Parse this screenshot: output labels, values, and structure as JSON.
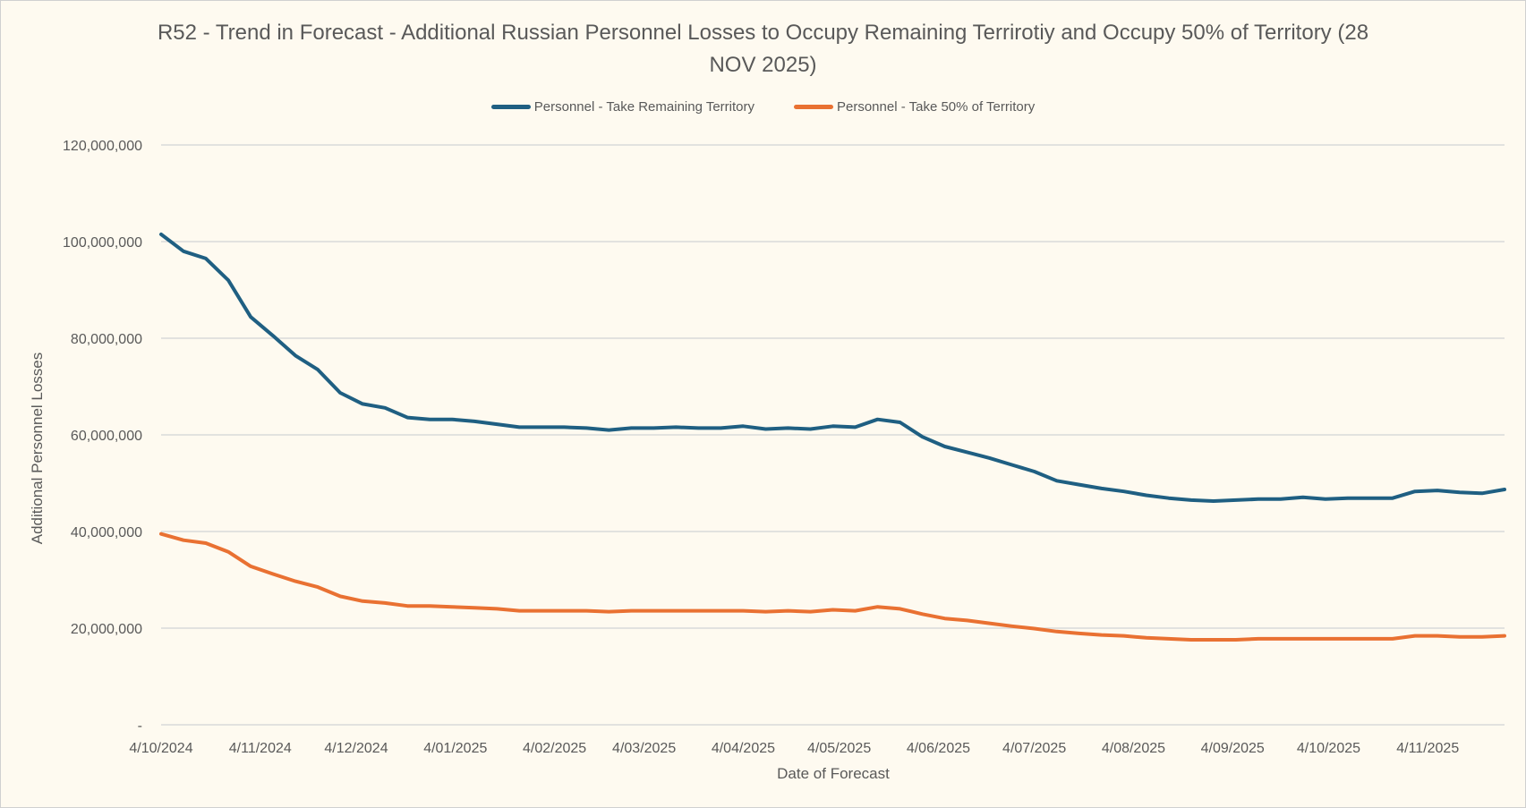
{
  "chart_data": {
    "type": "line",
    "title": "R52 - Trend in Forecast - Additional Russian Personnel Losses to Occupy Remaining Terrirotiy and Occupy 50% of Territory  (28 NOV 2025)",
    "xlabel": "Date of Forecast",
    "ylabel": "Additional Personnel Losses",
    "ylim": [
      0,
      120000000
    ],
    "y_ticks": [
      0,
      20000000,
      40000000,
      60000000,
      80000000,
      100000000,
      120000000
    ],
    "y_tick_labels": [
      "-",
      "20,000,000",
      "40,000,000",
      "60,000,000",
      "80,000,000",
      "100,000,000",
      "120,000,000"
    ],
    "x_ticks": [
      "2024-10-04",
      "2024-11-04",
      "2024-12-04",
      "2025-01-04",
      "2025-02-04",
      "2025-03-04",
      "2025-04-04",
      "2025-05-04",
      "2025-06-04",
      "2025-07-04",
      "2025-08-04",
      "2025-09-04",
      "2025-10-04",
      "2025-11-04"
    ],
    "x_tick_labels": [
      "4/10/2024",
      "4/11/2024",
      "4/12/2024",
      "4/01/2025",
      "4/02/2025",
      "4/03/2025",
      "4/04/2025",
      "4/05/2025",
      "4/06/2025",
      "4/07/2025",
      "4/08/2025",
      "4/09/2025",
      "4/10/2025",
      "4/11/2025"
    ],
    "xlim": [
      "2024-10-04",
      "2025-11-28"
    ],
    "grid": true,
    "legend_position": "top",
    "x": [
      "2024-10-04",
      "2024-10-11",
      "2024-10-18",
      "2024-10-25",
      "2024-11-01",
      "2024-11-08",
      "2024-11-15",
      "2024-11-22",
      "2024-11-29",
      "2024-12-06",
      "2024-12-13",
      "2024-12-20",
      "2024-12-27",
      "2025-01-03",
      "2025-01-10",
      "2025-01-17",
      "2025-01-24",
      "2025-01-31",
      "2025-02-07",
      "2025-02-14",
      "2025-02-21",
      "2025-02-28",
      "2025-03-07",
      "2025-03-14",
      "2025-03-21",
      "2025-03-28",
      "2025-04-04",
      "2025-04-11",
      "2025-04-18",
      "2025-04-25",
      "2025-05-02",
      "2025-05-09",
      "2025-05-16",
      "2025-05-23",
      "2025-05-30",
      "2025-06-06",
      "2025-06-13",
      "2025-06-20",
      "2025-06-27",
      "2025-07-04",
      "2025-07-11",
      "2025-07-18",
      "2025-07-25",
      "2025-08-01",
      "2025-08-08",
      "2025-08-15",
      "2025-08-22",
      "2025-08-29",
      "2025-09-05",
      "2025-09-12",
      "2025-09-19",
      "2025-09-26",
      "2025-10-03",
      "2025-10-10",
      "2025-10-17",
      "2025-10-24",
      "2025-10-31",
      "2025-11-07",
      "2025-11-14",
      "2025-11-21",
      "2025-11-28"
    ],
    "series": [
      {
        "name": "Personnel - Take Remaining Territory",
        "color": "#1f5f82",
        "values": [
          101500000,
          98000000,
          96500000,
          92000000,
          84400000,
          80500000,
          76400000,
          73500000,
          68700000,
          66400000,
          65600000,
          63600000,
          63200000,
          63200000,
          62800000,
          62200000,
          61600000,
          61600000,
          61600000,
          61400000,
          61000000,
          61400000,
          61400000,
          61600000,
          61400000,
          61400000,
          61800000,
          61200000,
          61400000,
          61200000,
          61800000,
          61600000,
          63200000,
          62600000,
          59600000,
          57600000,
          56400000,
          55200000,
          53800000,
          52400000,
          50500000,
          49700000,
          48900000,
          48300000,
          47500000,
          46900000,
          46500000,
          46300000,
          46500000,
          46700000,
          46700000,
          47100000,
          46700000,
          46900000,
          46900000,
          46900000,
          48300000,
          48500000,
          48100000,
          47900000,
          48700000
        ]
      },
      {
        "name": "Personnel - Take 50% of Territory",
        "color": "#e97132",
        "values": [
          39500000,
          38200000,
          37600000,
          35800000,
          32800000,
          31200000,
          29700000,
          28500000,
          26600000,
          25600000,
          25200000,
          24600000,
          24600000,
          24400000,
          24200000,
          24000000,
          23600000,
          23600000,
          23600000,
          23600000,
          23400000,
          23600000,
          23600000,
          23600000,
          23600000,
          23600000,
          23600000,
          23400000,
          23600000,
          23400000,
          23800000,
          23600000,
          24400000,
          24000000,
          22900000,
          22000000,
          21600000,
          21000000,
          20400000,
          19900000,
          19300000,
          18900000,
          18600000,
          18400000,
          18000000,
          17800000,
          17600000,
          17600000,
          17600000,
          17800000,
          17800000,
          17800000,
          17800000,
          17800000,
          17800000,
          17800000,
          18400000,
          18400000,
          18200000,
          18200000,
          18400000
        ]
      }
    ]
  }
}
